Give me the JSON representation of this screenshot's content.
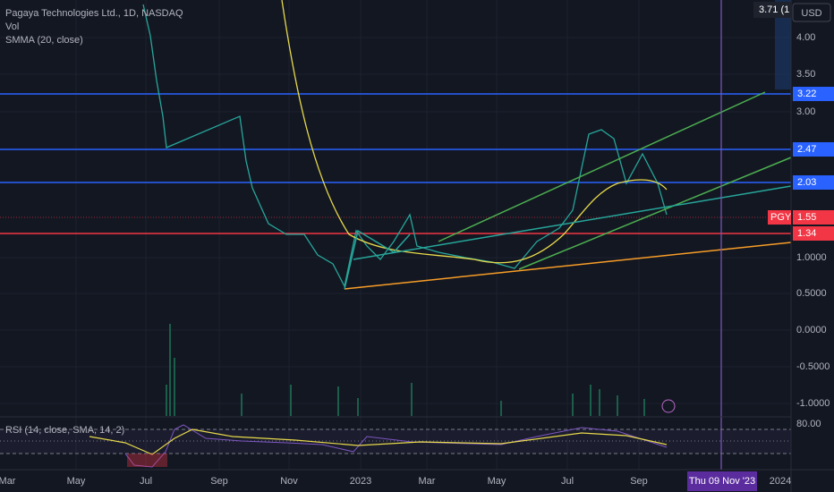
{
  "header": {
    "symbol": "Pagaya Technologies Ltd., 1D, NASDAQ",
    "indicators": [
      "Vol",
      "SMMA (20, close)"
    ]
  },
  "price_axis": {
    "currency": "USD",
    "labels": [
      "4.00",
      "3.50",
      "3.00",
      "1.0000",
      "0.5000",
      "0.0000",
      "-0.5000",
      "-1.0000",
      "80.00"
    ],
    "tags": [
      "3.71 (1",
      "3.22",
      "2.47",
      "2.03",
      "1.34"
    ],
    "last": {
      "ticker": "PGY",
      "price": "1.55"
    }
  },
  "rsi": {
    "label": "RSI (14, close, SMA, 14, 2)"
  },
  "time_axis": {
    "labels": [
      "Mar",
      "May",
      "Jul",
      "Sep",
      "Nov",
      "2023",
      "Mar",
      "May",
      "Jul",
      "Sep",
      "2024"
    ],
    "cursor": "Thu 09 Nov '23"
  }
}
